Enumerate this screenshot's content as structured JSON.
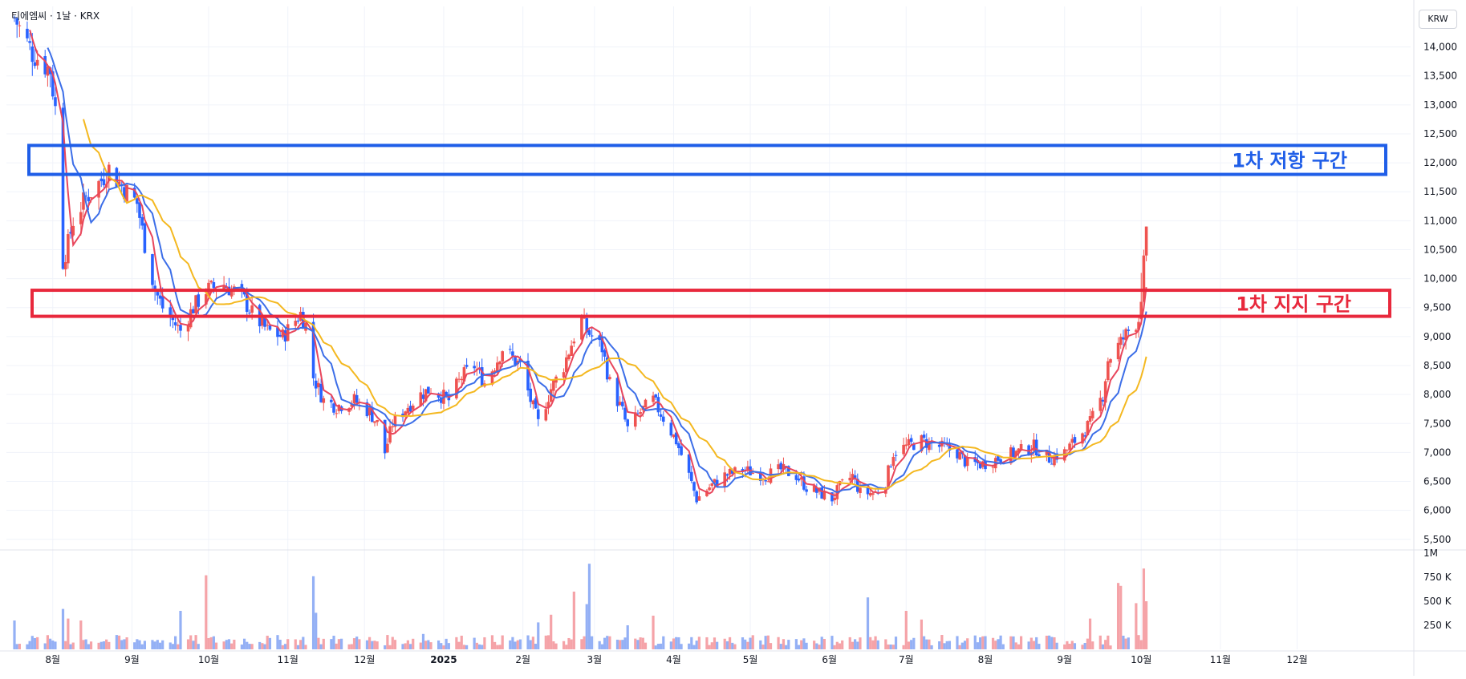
{
  "header": {
    "symbol_line": "티에엠씨 · 1날 · KRX",
    "currency": "KRW"
  },
  "colors": {
    "up": "#ef5350",
    "down": "#2962ff",
    "ma_short": "#e8465c",
    "ma_mid": "#3c6ee8",
    "ma_long": "#f4b820",
    "resistance": "#1f5ee8",
    "support": "#e8283c"
  },
  "chart_data": {
    "type": "candlestick",
    "title": "",
    "price_ticks": [
      "14,000",
      "13,500",
      "13,000",
      "12,500",
      "12,000",
      "11,500",
      "11,000",
      "10,500",
      "10,000",
      "9,500",
      "9,000",
      "8,500",
      "8,000",
      "7,500",
      "7,000",
      "6,500",
      "6,000",
      "5,500"
    ],
    "ylim": [
      5400,
      14700
    ],
    "volume_ticks": [
      "1M",
      "750 K",
      "500 K",
      "250 K"
    ],
    "volume_ylim": [
      0,
      1000000
    ],
    "x_labels": [
      "8월",
      "9월",
      "10월",
      "11월",
      "12월",
      "2025",
      "2월",
      "3월",
      "4월",
      "5월",
      "6월",
      "7월",
      "8월",
      "9월",
      "10월",
      "11월",
      "12월"
    ],
    "x_range": [
      "2024-07-17",
      "2025-12-31"
    ],
    "price_anchors": [
      [
        "2024-07-17",
        14500
      ],
      [
        "2024-07-24",
        13900
      ],
      [
        "2024-07-31",
        13600
      ],
      [
        "2024-08-03",
        12600
      ],
      [
        "2024-08-05",
        10300
      ],
      [
        "2024-08-07",
        10600
      ],
      [
        "2024-08-09",
        11000
      ],
      [
        "2024-08-14",
        11400
      ],
      [
        "2024-08-20",
        11700
      ],
      [
        "2024-08-23",
        11900
      ],
      [
        "2024-08-28",
        11600
      ],
      [
        "2024-09-03",
        11300
      ],
      [
        "2024-09-06",
        10600
      ],
      [
        "2024-09-10",
        9800
      ],
      [
        "2024-09-13",
        9500
      ],
      [
        "2024-09-20",
        9100
      ],
      [
        "2024-09-25",
        9500
      ],
      [
        "2024-09-30",
        9800
      ],
      [
        "2024-10-07",
        9900
      ],
      [
        "2024-10-14",
        9700
      ],
      [
        "2024-10-18",
        9400
      ],
      [
        "2024-10-24",
        9100
      ],
      [
        "2024-10-30",
        9000
      ],
      [
        "2024-11-06",
        9400
      ],
      [
        "2024-11-08",
        9200
      ],
      [
        "2024-11-11",
        8300
      ],
      [
        "2024-11-15",
        7900
      ],
      [
        "2024-11-20",
        7800
      ],
      [
        "2024-11-27",
        7900
      ],
      [
        "2024-12-03",
        7700
      ],
      [
        "2024-12-06",
        7500
      ],
      [
        "2024-12-09",
        7000
      ],
      [
        "2024-12-12",
        7500
      ],
      [
        "2024-12-18",
        7800
      ],
      [
        "2024-12-23",
        8000
      ],
      [
        "2024-12-27",
        8100
      ],
      [
        "2025-01-03",
        7900
      ],
      [
        "2025-01-08",
        8300
      ],
      [
        "2025-01-13",
        8500
      ],
      [
        "2025-01-17",
        8200
      ],
      [
        "2025-01-22",
        8600
      ],
      [
        "2025-01-24",
        8800
      ],
      [
        "2025-01-31",
        8500
      ],
      [
        "2025-02-04",
        7900
      ],
      [
        "2025-02-07",
        7500
      ],
      [
        "2025-02-12",
        8100
      ],
      [
        "2025-02-17",
        8500
      ],
      [
        "2025-02-21",
        9000
      ],
      [
        "2025-02-24",
        9300
      ],
      [
        "2025-02-26",
        9100
      ],
      [
        "2025-03-04",
        8800
      ],
      [
        "2025-03-07",
        8200
      ],
      [
        "2025-03-12",
        7700
      ],
      [
        "2025-03-14",
        7400
      ],
      [
        "2025-03-19",
        7700
      ],
      [
        "2025-03-24",
        7900
      ],
      [
        "2025-03-28",
        7600
      ],
      [
        "2025-04-02",
        7200
      ],
      [
        "2025-04-07",
        6600
      ],
      [
        "2025-04-10",
        6200
      ],
      [
        "2025-04-15",
        6400
      ],
      [
        "2025-04-21",
        6600
      ],
      [
        "2025-04-28",
        6700
      ],
      [
        "2025-05-07",
        6600
      ],
      [
        "2025-05-13",
        6700
      ],
      [
        "2025-05-19",
        6600
      ],
      [
        "2025-05-23",
        6400
      ],
      [
        "2025-05-28",
        6300
      ],
      [
        "2025-06-02",
        6200
      ],
      [
        "2025-06-05",
        6400
      ],
      [
        "2025-06-10",
        6600
      ],
      [
        "2025-06-13",
        6300
      ],
      [
        "2025-06-19",
        6300
      ],
      [
        "2025-06-23",
        6500
      ],
      [
        "2025-06-26",
        7000
      ],
      [
        "2025-07-01",
        7100
      ],
      [
        "2025-07-07",
        7200
      ],
      [
        "2025-07-14",
        7100
      ],
      [
        "2025-07-21",
        7000
      ],
      [
        "2025-07-25",
        6800
      ],
      [
        "2025-07-31",
        6800
      ],
      [
        "2025-08-06",
        6900
      ],
      [
        "2025-08-13",
        7000
      ],
      [
        "2025-08-20",
        7100
      ],
      [
        "2025-08-26",
        6900
      ],
      [
        "2025-09-01",
        7000
      ],
      [
        "2025-09-05",
        7200
      ],
      [
        "2025-09-11",
        7500
      ],
      [
        "2025-09-16",
        8000
      ],
      [
        "2025-09-18",
        8600
      ],
      [
        "2025-09-23",
        8900
      ],
      [
        "2025-09-26",
        9100
      ],
      [
        "2025-09-30",
        9300
      ],
      [
        "2025-10-01",
        9500
      ],
      [
        "2025-10-02",
        9700
      ]
    ],
    "last_candles": [
      {
        "date": "2025-10-01",
        "open": 9300,
        "high": 10100,
        "low": 9200,
        "close": 9600
      },
      {
        "date": "2025-10-02",
        "open": 9600,
        "high": 10500,
        "low": 9500,
        "close": 10400
      },
      {
        "date": "2025-10-03",
        "open": 10400,
        "high": 10900,
        "low": 10300,
        "close": 10900
      }
    ],
    "volume_spikes": [
      [
        "2024-07-17",
        300000
      ],
      [
        "2024-08-05",
        420000
      ],
      [
        "2024-08-07",
        320000
      ],
      [
        "2024-08-12",
        300000
      ],
      [
        "2024-09-20",
        400000
      ],
      [
        "2024-09-30",
        770000
      ],
      [
        "2024-11-11",
        760000
      ],
      [
        "2024-11-12",
        380000
      ],
      [
        "2024-12-24",
        160000
      ],
      [
        "2025-02-07",
        280000
      ],
      [
        "2025-02-12",
        360000
      ],
      [
        "2025-02-21",
        600000
      ],
      [
        "2025-02-26",
        470000
      ],
      [
        "2025-02-27",
        890000
      ],
      [
        "2025-03-14",
        250000
      ],
      [
        "2025-03-24",
        350000
      ],
      [
        "2025-06-16",
        540000
      ],
      [
        "2025-07-01",
        400000
      ],
      [
        "2025-07-07",
        310000
      ],
      [
        "2025-09-11",
        320000
      ],
      [
        "2025-09-22",
        690000
      ],
      [
        "2025-09-23",
        660000
      ],
      [
        "2025-09-29",
        480000
      ],
      [
        "2025-10-02",
        840000
      ],
      [
        "2025-10-03",
        500000
      ]
    ],
    "moving_averages": [
      {
        "name": "ma_short",
        "period": 5
      },
      {
        "name": "ma_mid",
        "period": 10
      },
      {
        "name": "ma_long",
        "period": 20
      }
    ],
    "zones": [
      {
        "label": "1차 저항 구간",
        "low": 11800,
        "high": 12300,
        "color": "#1f5ee8"
      },
      {
        "label": "1차 지지 구간",
        "low": 9350,
        "high": 9800,
        "color": "#e8283c"
      }
    ]
  }
}
